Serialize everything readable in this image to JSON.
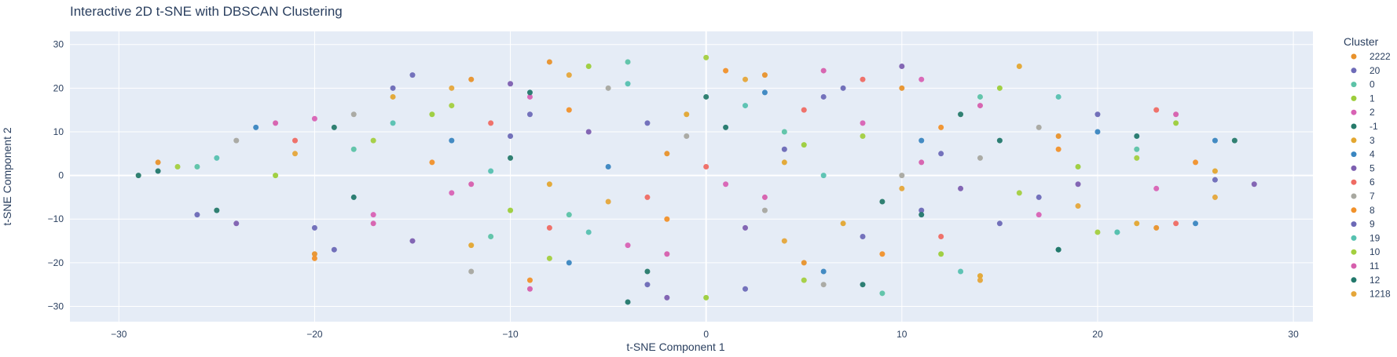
{
  "chart_data": {
    "type": "scatter",
    "title": "Interactive 2D t-SNE with DBSCAN Clustering",
    "xlabel": "t-SNE Component 1",
    "ylabel": "t-SNE Component 2",
    "xlim": [
      -32.5,
      31.0
    ],
    "ylim": [
      -33.5,
      33.0
    ],
    "x_ticks": [
      -30,
      -20,
      -10,
      0,
      10,
      20,
      30
    ],
    "y_ticks": [
      -30,
      -20,
      -10,
      0,
      10,
      20,
      30
    ],
    "x_tick_labels": [
      "−30",
      "−20",
      "−10",
      "0",
      "10",
      "20",
      "30"
    ],
    "y_tick_labels": [
      "−30",
      "−20",
      "−10",
      "0",
      "10",
      "20",
      "30"
    ],
    "grid": true,
    "legend": {
      "title": "Cluster",
      "placement": "right"
    },
    "series": [
      {
        "name": "2222",
        "color": "#e8922b",
        "points": [
          [
            -12,
            22
          ],
          [
            -8,
            26
          ],
          [
            3,
            23
          ],
          [
            10,
            20
          ],
          [
            -20,
            -18
          ],
          [
            -28,
            3
          ],
          [
            18,
            9
          ],
          [
            23,
            -12
          ],
          [
            5,
            -20
          ],
          [
            -2,
            5
          ]
        ]
      },
      {
        "name": "20",
        "color": "#6e6bb8",
        "points": [
          [
            -15,
            23
          ],
          [
            -9,
            14
          ],
          [
            6,
            18
          ],
          [
            12,
            5
          ],
          [
            26,
            -1
          ],
          [
            -20,
            -12
          ],
          [
            2,
            -26
          ],
          [
            17,
            -5
          ],
          [
            -3,
            12
          ],
          [
            8,
            -14
          ]
        ]
      },
      {
        "name": "0",
        "color": "#5cc3a7",
        "points": [
          [
            -26,
            2
          ],
          [
            -18,
            6
          ],
          [
            -7,
            -9
          ],
          [
            4,
            10
          ],
          [
            14,
            18
          ],
          [
            21,
            -13
          ],
          [
            9,
            -27
          ],
          [
            -11,
            -14
          ],
          [
            22,
            6
          ],
          [
            -4,
            26
          ]
        ]
      },
      {
        "name": "1",
        "color": "#9ccd3a",
        "points": [
          [
            -22,
            0
          ],
          [
            -14,
            14
          ],
          [
            -6,
            25
          ],
          [
            5,
            7
          ],
          [
            15,
            20
          ],
          [
            24,
            12
          ],
          [
            -10,
            -8
          ],
          [
            0,
            -28
          ],
          [
            12,
            -18
          ],
          [
            19,
            2
          ]
        ]
      },
      {
        "name": "2",
        "color": "#d862b4",
        "points": [
          [
            -20,
            13
          ],
          [
            -13,
            -4
          ],
          [
            -4,
            -16
          ],
          [
            8,
            12
          ],
          [
            17,
            -9
          ],
          [
            23,
            -3
          ],
          [
            -9,
            18
          ],
          [
            1,
            -2
          ],
          [
            11,
            22
          ],
          [
            -17,
            -9
          ]
        ]
      },
      {
        "name": "-1",
        "color": "#267a6a",
        "points": [
          [
            -29,
            0
          ],
          [
            -25,
            -8
          ],
          [
            -19,
            11
          ],
          [
            -10,
            4
          ],
          [
            0,
            18
          ],
          [
            9,
            -6
          ],
          [
            18,
            -17
          ],
          [
            27,
            8
          ],
          [
            -3,
            -22
          ],
          [
            13,
            14
          ]
        ]
      },
      {
        "name": "3",
        "color": "#e3a730",
        "points": [
          [
            -16,
            18
          ],
          [
            -8,
            -2
          ],
          [
            -1,
            14
          ],
          [
            7,
            -11
          ],
          [
            16,
            25
          ],
          [
            22,
            -11
          ],
          [
            14,
            -23
          ],
          [
            -12,
            -16
          ],
          [
            4,
            3
          ],
          [
            26,
            1
          ]
        ]
      },
      {
        "name": "4",
        "color": "#3a86c0",
        "points": [
          [
            -23,
            11
          ],
          [
            -13,
            8
          ],
          [
            -5,
            2
          ],
          [
            3,
            19
          ],
          [
            11,
            8
          ],
          [
            26,
            8
          ],
          [
            20,
            10
          ],
          [
            -7,
            -20
          ],
          [
            6,
            -22
          ],
          [
            25,
            -11
          ]
        ]
      },
      {
        "name": "5",
        "color": "#7d5fb0",
        "points": [
          [
            -24,
            -11
          ],
          [
            -15,
            -15
          ],
          [
            -6,
            10
          ],
          [
            2,
            -12
          ],
          [
            10,
            25
          ],
          [
            19,
            -2
          ],
          [
            28,
            -2
          ],
          [
            -2,
            -28
          ],
          [
            13,
            -3
          ],
          [
            -10,
            21
          ]
        ]
      },
      {
        "name": "6",
        "color": "#ef6b63",
        "points": [
          [
            -21,
            8
          ],
          [
            -11,
            12
          ],
          [
            -3,
            -5
          ],
          [
            5,
            15
          ],
          [
            12,
            -14
          ],
          [
            23,
            15
          ],
          [
            24,
            -11
          ],
          [
            -8,
            -12
          ],
          [
            8,
            22
          ],
          [
            0,
            2
          ]
        ]
      },
      {
        "name": "7",
        "color": "#a8a8a0",
        "points": [
          [
            -18,
            14
          ],
          [
            -12,
            -22
          ],
          [
            -5,
            20
          ],
          [
            3,
            -8
          ],
          [
            10,
            0
          ],
          [
            17,
            11
          ],
          [
            -24,
            8
          ],
          [
            6,
            -25
          ],
          [
            -1,
            9
          ],
          [
            14,
            4
          ]
        ]
      },
      {
        "name": "8",
        "color": "#f1912a",
        "points": [
          [
            -20,
            -19
          ],
          [
            -14,
            3
          ],
          [
            -7,
            15
          ],
          [
            1,
            24
          ],
          [
            9,
            -18
          ],
          [
            18,
            6
          ],
          [
            25,
            3
          ],
          [
            -2,
            -10
          ],
          [
            12,
            11
          ],
          [
            -9,
            -24
          ]
        ]
      },
      {
        "name": "9",
        "color": "#6c69b6",
        "points": [
          [
            -19,
            -17
          ],
          [
            -10,
            9
          ],
          [
            -3,
            -25
          ],
          [
            4,
            6
          ],
          [
            11,
            -8
          ],
          [
            20,
            14
          ],
          [
            -16,
            20
          ],
          [
            7,
            20
          ],
          [
            15,
            -11
          ],
          [
            -26,
            -9
          ]
        ]
      },
      {
        "name": "19",
        "color": "#56c1b0",
        "points": [
          [
            -25,
            4
          ],
          [
            -16,
            12
          ],
          [
            -4,
            21
          ],
          [
            6,
            0
          ],
          [
            13,
            -22
          ],
          [
            21,
            -13
          ],
          [
            -6,
            -13
          ],
          [
            2,
            16
          ],
          [
            18,
            18
          ],
          [
            -11,
            1
          ]
        ]
      },
      {
        "name": "10",
        "color": "#a3cf3f",
        "points": [
          [
            -27,
            2
          ],
          [
            -17,
            8
          ],
          [
            -8,
            -19
          ],
          [
            0,
            27
          ],
          [
            8,
            9
          ],
          [
            16,
            -4
          ],
          [
            20,
            -13
          ],
          [
            -13,
            16
          ],
          [
            5,
            -24
          ],
          [
            22,
            4
          ]
        ]
      },
      {
        "name": "11",
        "color": "#d65fad",
        "points": [
          [
            -22,
            12
          ],
          [
            -12,
            -2
          ],
          [
            -2,
            -18
          ],
          [
            6,
            24
          ],
          [
            14,
            16
          ],
          [
            24,
            14
          ],
          [
            -9,
            -26
          ],
          [
            3,
            -5
          ],
          [
            11,
            3
          ],
          [
            -17,
            -11
          ]
        ]
      },
      {
        "name": "12",
        "color": "#22786b",
        "points": [
          [
            -28,
            1
          ],
          [
            -18,
            -5
          ],
          [
            -9,
            19
          ],
          [
            1,
            11
          ],
          [
            8,
            -25
          ],
          [
            15,
            8
          ],
          [
            18,
            -17
          ],
          [
            -4,
            -29
          ],
          [
            11,
            -9
          ],
          [
            22,
            9
          ]
        ]
      },
      {
        "name": "1218",
        "color": "#e5a63a",
        "points": [
          [
            -21,
            5
          ],
          [
            -13,
            20
          ],
          [
            -5,
            -6
          ],
          [
            2,
            22
          ],
          [
            10,
            -3
          ],
          [
            19,
            -7
          ],
          [
            26,
            -5
          ],
          [
            -7,
            23
          ],
          [
            14,
            -24
          ],
          [
            4,
            -15
          ]
        ]
      }
    ]
  }
}
